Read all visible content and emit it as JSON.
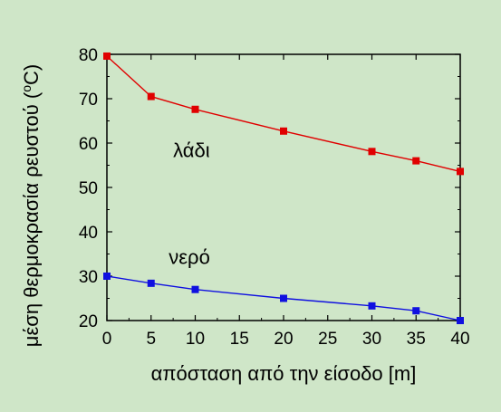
{
  "chart_data": {
    "type": "line",
    "xlabel": "απόσταση από την είσοδο [m]",
    "ylabel": "μέση θερμοκρασία ρευστού (oC)",
    "xlim": [
      0,
      40
    ],
    "ylim": [
      20,
      80
    ],
    "xticks": [
      0,
      5,
      10,
      15,
      20,
      25,
      30,
      35,
      40
    ],
    "yticks": [
      20,
      30,
      40,
      50,
      60,
      70,
      80
    ],
    "grid": false,
    "series": [
      {
        "name": "λάδι",
        "color": "#e00000",
        "marker": "square",
        "x": [
          0,
          5,
          10,
          20,
          30,
          35,
          40
        ],
        "y": [
          79.6,
          70.5,
          67.6,
          62.7,
          58.1,
          56.0,
          53.6
        ]
      },
      {
        "name": "νερό",
        "color": "#1010e0",
        "marker": "square",
        "x": [
          0,
          5,
          10,
          20,
          30,
          35,
          40
        ],
        "y": [
          30.0,
          28.4,
          27.0,
          25.0,
          23.3,
          22.2,
          20.0
        ]
      }
    ]
  },
  "background_color": "#cfe6c8"
}
